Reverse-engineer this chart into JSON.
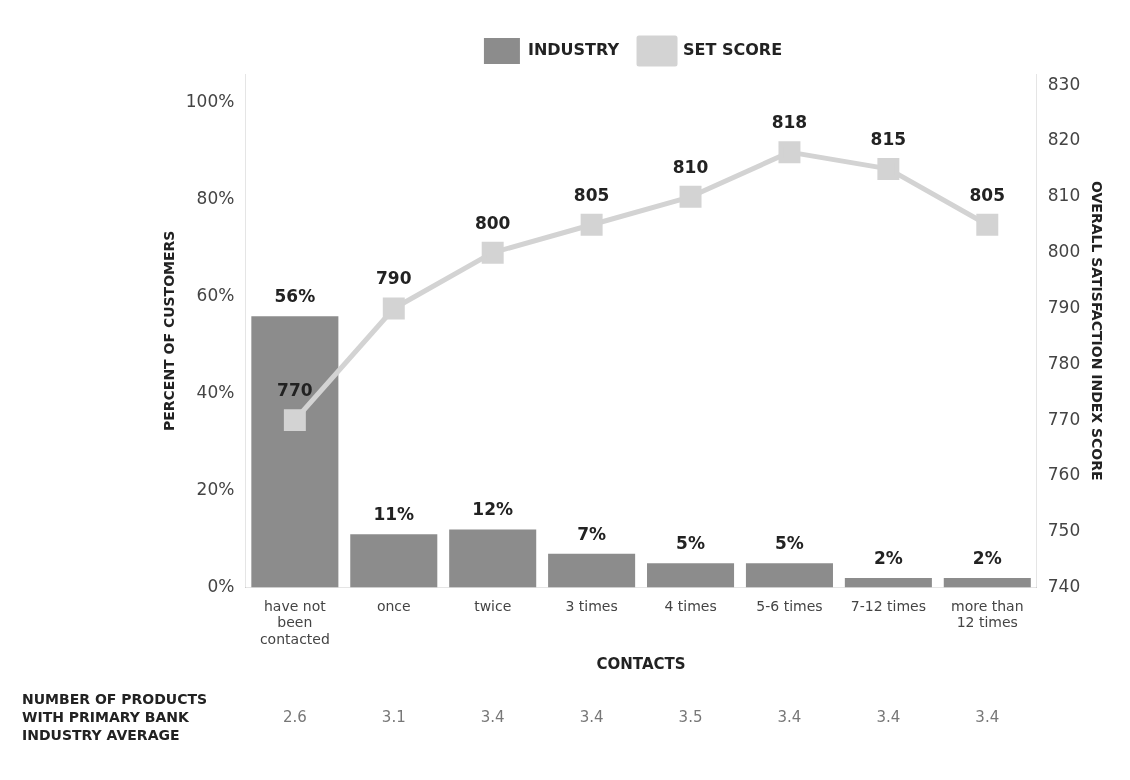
{
  "chart_data": {
    "type": "bar",
    "categories": [
      "have not been contacted",
      "once",
      "twice",
      "3 times",
      "4 times",
      "5-6 times",
      "7-12 times",
      "more than 12 times"
    ],
    "series": [
      {
        "name": "INDUSTRY",
        "color": "#8c8c8c",
        "values": [
          56,
          11,
          12,
          7,
          5,
          5,
          2,
          2
        ],
        "value_labels": [
          "56%",
          "11%",
          "12%",
          "7%",
          "5%",
          "5%",
          "2%",
          "2%"
        ]
      },
      {
        "name": "SET SCORE",
        "type": "line",
        "axis": "y2",
        "color": "#d3d3d3",
        "values": [
          770,
          790,
          800,
          805,
          810,
          818,
          815,
          805
        ],
        "value_labels": [
          "770",
          "790",
          "800",
          "805",
          "810",
          "818",
          "815",
          "805"
        ]
      }
    ],
    "xlabel": "CONTACTS",
    "ylabel": "PERCENT OF CUSTOMERS",
    "y2label": "OVERALL SATISFACTION INDEX SCORE",
    "ylim": [
      0,
      106
    ],
    "yticks": [
      {
        "value": 0,
        "label": "0%"
      },
      {
        "value": 20,
        "label": "20%"
      },
      {
        "value": 40,
        "label": "40%"
      },
      {
        "value": 60,
        "label": "60%"
      },
      {
        "value": 80,
        "label": "80%"
      },
      {
        "value": 100,
        "label": "100%"
      }
    ],
    "y2lim": [
      740,
      832
    ],
    "y2ticks": [
      740,
      750,
      760,
      770,
      780,
      790,
      800,
      810,
      820,
      830
    ],
    "legend": "top",
    "grid": false,
    "marker": "square",
    "annotations": [
      "NUMBER OF PRODUCTS WITH PRIMARY BANK INDUSTRY AVERAGE",
      "2.6",
      "3.1",
      "3.4",
      "3.4",
      "3.5",
      "3.4",
      "3.4",
      "3.4"
    ]
  }
}
